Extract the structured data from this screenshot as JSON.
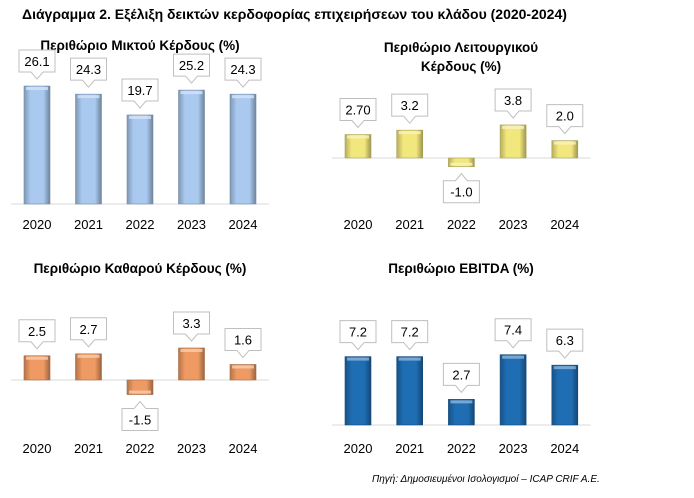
{
  "title": "Διάγραμμα 2. Εξέλιξη δεικτών κερδοφορίας επιχειρήσεων του κλάδου (2020-2024)",
  "source": "Πηγή: Δημοσιευμένοι Ισολογισμοί – ICAP CRIF A.E.",
  "chart_data": [
    {
      "type": "bar",
      "title": [
        "Περιθώριο Μικτού Κέρδους (%)"
      ],
      "categories": [
        "2020",
        "2021",
        "2022",
        "2023",
        "2024"
      ],
      "values": [
        26.1,
        24.3,
        19.7,
        25.2,
        24.3
      ],
      "labels": [
        "26.1",
        "24.3",
        "19.7",
        "25.2",
        "24.3"
      ],
      "color": "#a9c9ef"
    },
    {
      "type": "bar",
      "title": [
        "Περιθώριο Λειτουργικού",
        "Κέρδους (%)"
      ],
      "categories": [
        "2020",
        "2021",
        "2022",
        "2023",
        "2024"
      ],
      "values": [
        2.7,
        3.2,
        -1.0,
        3.8,
        2.0
      ],
      "labels": [
        "2.70",
        "3.2",
        "-1.0",
        "3.8",
        "2.0"
      ],
      "color": "#f2e77c"
    },
    {
      "type": "bar",
      "title": [
        "Περιθώριο Καθαρού Κέρδους (%)"
      ],
      "categories": [
        "2020",
        "2021",
        "2022",
        "2023",
        "2024"
      ],
      "values": [
        2.5,
        2.7,
        -1.5,
        3.3,
        1.6
      ],
      "labels": [
        "2.5",
        "2.7",
        "-1.5",
        "3.3",
        "1.6"
      ],
      "color": "#ee9a62"
    },
    {
      "type": "bar",
      "title": [
        "Περιθώριο EBITDA (%)"
      ],
      "categories": [
        "2020",
        "2021",
        "2022",
        "2023",
        "2024"
      ],
      "values": [
        7.2,
        7.2,
        2.7,
        7.4,
        6.3
      ],
      "labels": [
        "7.2",
        "7.2",
        "2.7",
        "7.4",
        "6.3"
      ],
      "color": "#1f6db3"
    }
  ]
}
